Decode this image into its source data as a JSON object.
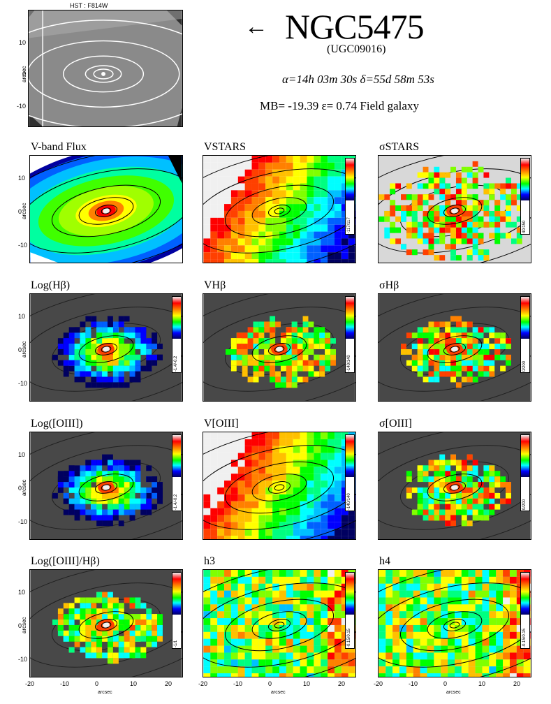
{
  "header": {
    "galaxy_name": "NGC5475",
    "arrow_glyph": "←",
    "alias": "(UGC09016)",
    "coords": "α=14h 03m 30s    δ=55d 58m 53s",
    "properties": "MB= -19.39    ε= 0.74    Field galaxy",
    "hst_label": "HST : F814W"
  },
  "axes": {
    "y_label": "arcsec",
    "x_label": "arcsec",
    "y_ticks": [
      "10",
      "0",
      "-10"
    ],
    "x_ticks": [
      "-20",
      "-10",
      "0",
      "10",
      "20"
    ]
  },
  "colors": {
    "background_gray": "#484848",
    "contour": "#000000",
    "hst_contour": "#ffffff"
  },
  "panels": [
    {
      "id": "vband",
      "title": "V-band Flux",
      "range": "",
      "style": "flux"
    },
    {
      "id": "vstars",
      "title": "VSTARS",
      "range": "-117/117",
      "style": "velocity"
    },
    {
      "id": "sigstars",
      "title": "σSTARS",
      "range": "40/150",
      "style": "sigma"
    },
    {
      "id": "loghb",
      "title": "Log(Hβ)",
      "range": "-1.4/-0.2",
      "style": "logem"
    },
    {
      "id": "vhb",
      "title": "VHβ",
      "range": "-140/140",
      "style": "velem"
    },
    {
      "id": "sighb",
      "title": "σHβ",
      "range": "0/200",
      "style": "sigem"
    },
    {
      "id": "logoiii",
      "title": "Log([OIII])",
      "range": "-1.4/-0.2",
      "style": "logem"
    },
    {
      "id": "voiii",
      "title": "V[OIII]",
      "range": "-140/140",
      "style": "velocity"
    },
    {
      "id": "sigoiii",
      "title": "σ[OIII]",
      "range": "0/200",
      "style": "sigem"
    },
    {
      "id": "ratio",
      "title": "Log([OIII]/Hβ)",
      "range": "-1/1",
      "style": "ratio"
    },
    {
      "id": "h3",
      "title": "h3",
      "range": "-0.15/0.15",
      "style": "moment"
    },
    {
      "id": "h4",
      "title": "h4",
      "range": "-0.15/0.15",
      "style": "moment"
    }
  ]
}
